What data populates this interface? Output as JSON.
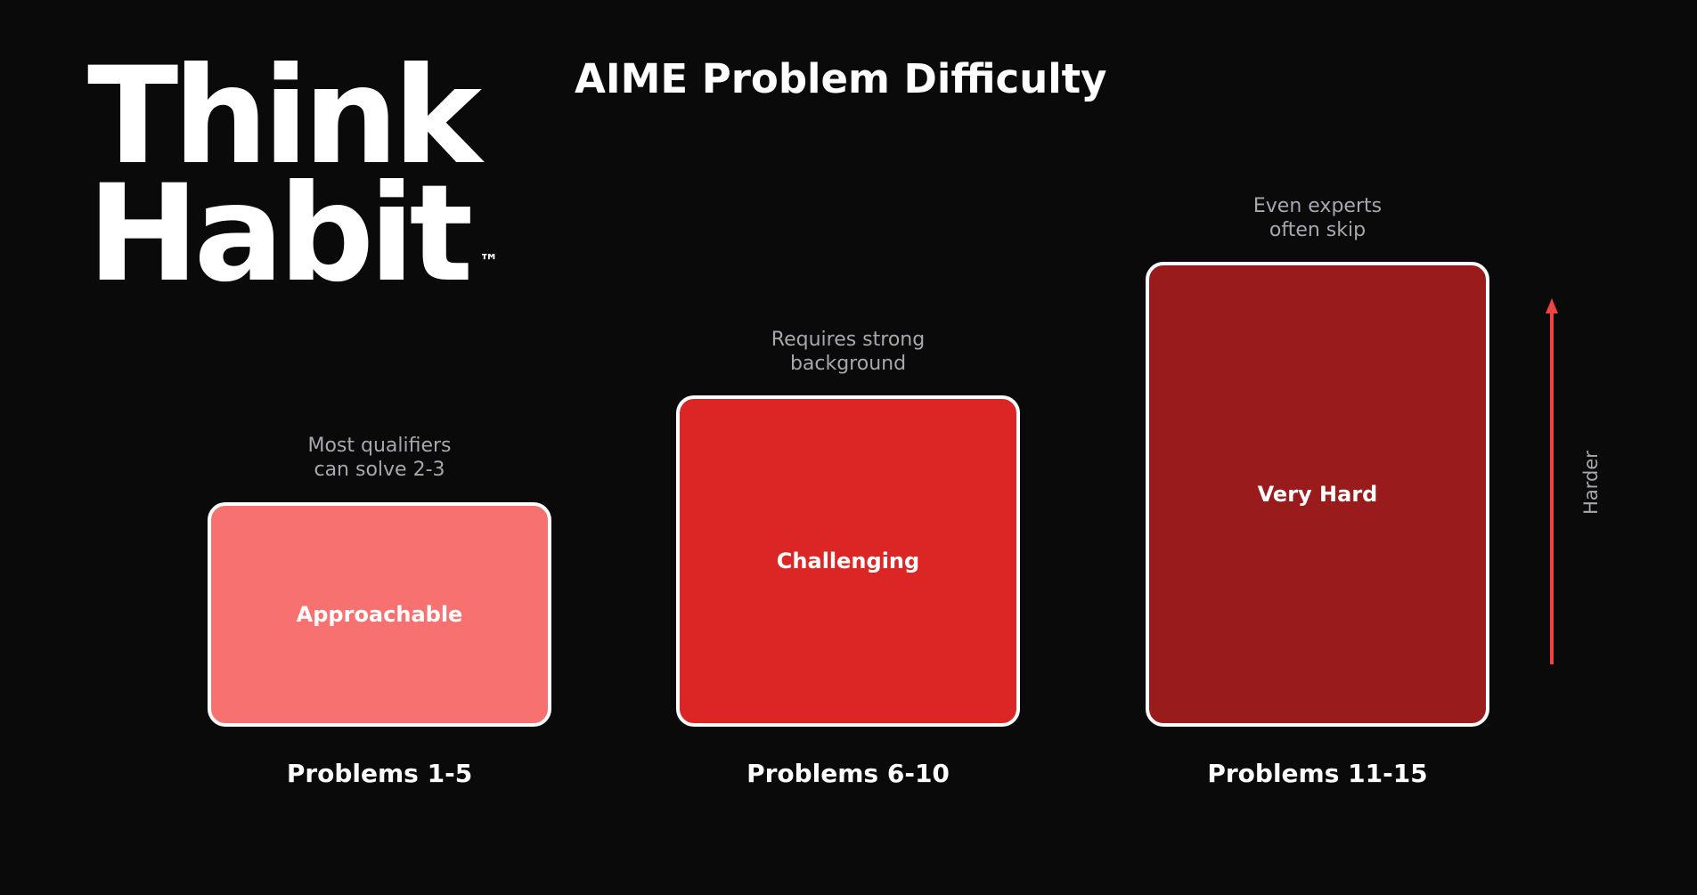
{
  "logo": {
    "line1": "Think",
    "line2": "Habit",
    "tm": "™"
  },
  "title": "AIME Problem Difficulty",
  "tiers": [
    {
      "problems": "Problems 1-5",
      "label": "Approachable",
      "note": "Most qualifiers\ncan solve 2-3",
      "level": 1,
      "color": "#f87171"
    },
    {
      "problems": "Problems 6-10",
      "label": "Challenging",
      "note": "Requires strong\nbackground",
      "level": 2,
      "color": "#dc2626"
    },
    {
      "problems": "Problems 11-15",
      "label": "Very Hard",
      "note": "Even experts\noften skip",
      "level": 3,
      "color": "#991b1b"
    }
  ],
  "axis": {
    "label": "Harder",
    "color": "#ef4444"
  },
  "colors": {
    "background": "#0a0a0a",
    "note_text": "#a7a7ad",
    "bar_border": "#ffffff"
  }
}
